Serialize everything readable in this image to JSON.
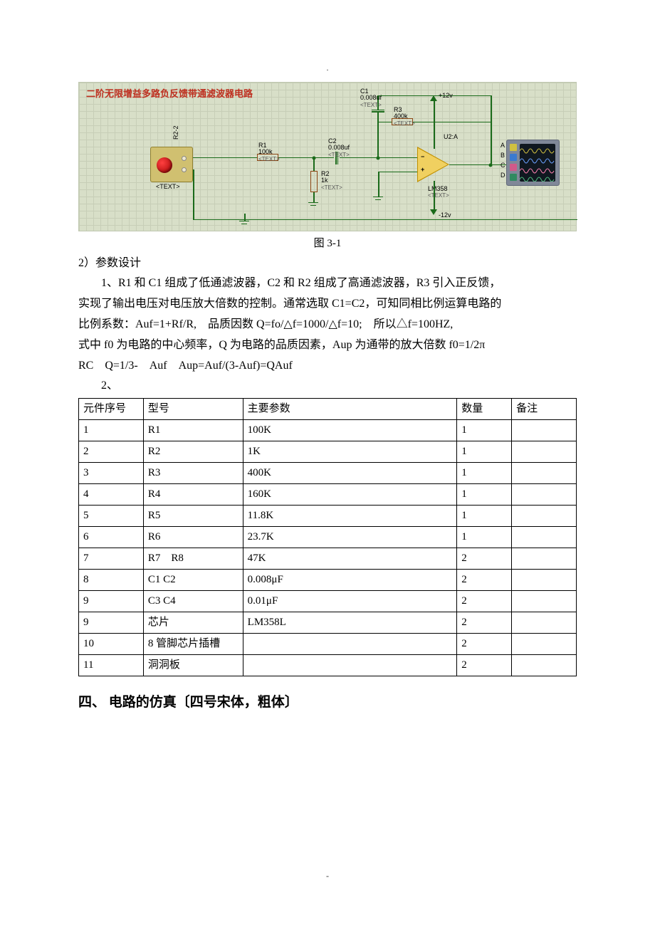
{
  "header_mark": ".",
  "footer_mark": "-",
  "schematic": {
    "title_text": "二阶无限增益多路负反馈带通滤波器电路",
    "title_color": "#c03020",
    "source_label": "R2-2",
    "source_sub": "<TEXT>",
    "R1": {
      "name": "R1",
      "value": "100k",
      "sub": "<TEXT>"
    },
    "R2": {
      "name": "R2",
      "value": "1k",
      "sub": "<TEXT>"
    },
    "R3": {
      "name": "R3",
      "value": "400k",
      "sub": "<TEXT>"
    },
    "C1": {
      "name": "C1",
      "value": "0.008uf",
      "sub": "<TEXT>"
    },
    "C2": {
      "name": "C2",
      "value": "0.008uf",
      "sub": "<TEXT>"
    },
    "U2": {
      "name": "U2:A",
      "model": "LM358",
      "sub": "<TEXT>"
    },
    "vpos": "+12v",
    "vneg": "-12v",
    "scope_ports": [
      "A",
      "B",
      "C",
      "D"
    ],
    "scope_port_colors": [
      "#d0c040",
      "#3a7ad0",
      "#d05a8a",
      "#308a60"
    ]
  },
  "figure_caption": "图 3-1",
  "section2_title": "2）参数设计",
  "para1_line1": "1、R1 和 C1 组成了低通滤波器，C2 和 R2 组成了高通滤波器，R3 引入正反馈，",
  "para1_line2": "实现了输出电压对电压放大倍数的控制。通常选取 C1=C2，可知同相比例运算电路的",
  "para1_line3": "比例系数：Auf=1+Rf/R,　品质因数 Q=fo/△f=1000/△f=10;　所以△f=100HZ,",
  "para1_line4": "式中 f0 为电路的中心频率，Q 为电路的品质因素，Aup 为通带的放大倍数 f0=1/2π",
  "para1_line5": "RC　Q=1/3-　Auf　Aup=Auf/(3-Auf)=QAuf",
  "para2_lead": "2、",
  "table": {
    "columns": [
      "元件序号",
      "型号",
      "主要参数",
      "数量",
      "备注"
    ],
    "col_widths": [
      "13%",
      "20%",
      "43%",
      "11%",
      "13%"
    ],
    "rows": [
      [
        "1",
        "R1",
        "100K",
        "1",
        ""
      ],
      [
        "2",
        "R2",
        "1K",
        "1",
        ""
      ],
      [
        "3",
        "R3",
        "400K",
        "1",
        ""
      ],
      [
        "4",
        "R4",
        "160K",
        "1",
        ""
      ],
      [
        "5",
        "R5",
        "11.8K",
        "1",
        ""
      ],
      [
        "6",
        "R6",
        "23.7K",
        "1",
        ""
      ],
      [
        "7",
        "R7　R8",
        "47K",
        "2",
        ""
      ],
      [
        "8",
        "C1 C2",
        "0.008μF",
        "2",
        ""
      ],
      [
        "9",
        "C3 C4",
        "0.01μF",
        "2",
        ""
      ],
      [
        "9",
        "芯片",
        "LM358L",
        "2",
        ""
      ],
      [
        "10",
        "8 管脚芯片插槽",
        "",
        "2",
        ""
      ],
      [
        "11",
        "洞洞板",
        "",
        "2",
        ""
      ]
    ]
  },
  "heading4": "四、 电路的仿真〔四号宋体，粗体〕"
}
